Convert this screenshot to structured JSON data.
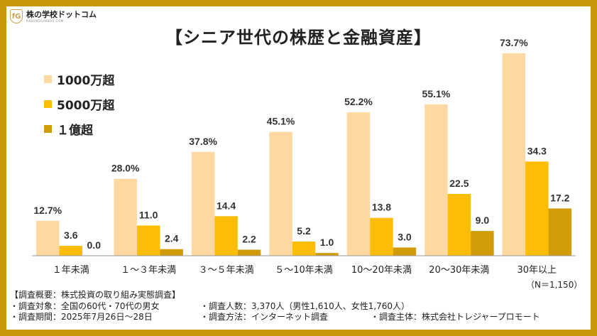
{
  "logo": {
    "badge": "fG",
    "name": "株の学校ドットコム",
    "sub": "KABUNOGAKKOU.COM"
  },
  "chart_data": {
    "type": "bar",
    "title": "【シニア世代の株歴と金融資産】",
    "categories": [
      "１年未満",
      "１～３年未満",
      "３～５年未満",
      "５～10年未満",
      "10～20年未満",
      "20～30年未満",
      "30年以上"
    ],
    "series": [
      {
        "name": "1000万超",
        "color": "#fdd8a0",
        "values": [
          12.7,
          28.0,
          37.8,
          45.1,
          52.2,
          55.1,
          73.7
        ],
        "labels": [
          "12.7%",
          "28.0%",
          "37.8%",
          "45.1%",
          "52.2%",
          "55.1%",
          "73.7%"
        ]
      },
      {
        "name": "5000万超",
        "color": "#fcbd07",
        "values": [
          3.6,
          11.0,
          14.4,
          5.2,
          13.8,
          22.5,
          34.3
        ],
        "labels": [
          "3.6",
          "11.0",
          "14.4",
          "5.2",
          "13.8",
          "22.5",
          "34.3"
        ]
      },
      {
        "name": "１億超",
        "color": "#d29b0a",
        "values": [
          0.0,
          2.4,
          2.2,
          1.0,
          3.0,
          9.0,
          17.2
        ],
        "labels": [
          "0.0",
          "2.4",
          "2.2",
          "1.0",
          "3.0",
          "9.0",
          "17.2"
        ]
      }
    ],
    "ylim": [
      0,
      75
    ],
    "xlabel": "",
    "ylabel": "",
    "legend_position": "top-left",
    "grid": false,
    "note": "（N＝1,150）"
  },
  "footer": {
    "heading": "【調査概要：株式投資の取り組み実態調査】",
    "target": "・調査対象：全国の60代・70代の男女",
    "respondents": "・調査人数：3,370人（男性1,610人、女性1,760人）",
    "period": "・調査期間：2025年7月26日～28日",
    "method": "・調査方法：インターネット調査",
    "organizer": "・調査主体：株式会社トレジャープロモート"
  }
}
